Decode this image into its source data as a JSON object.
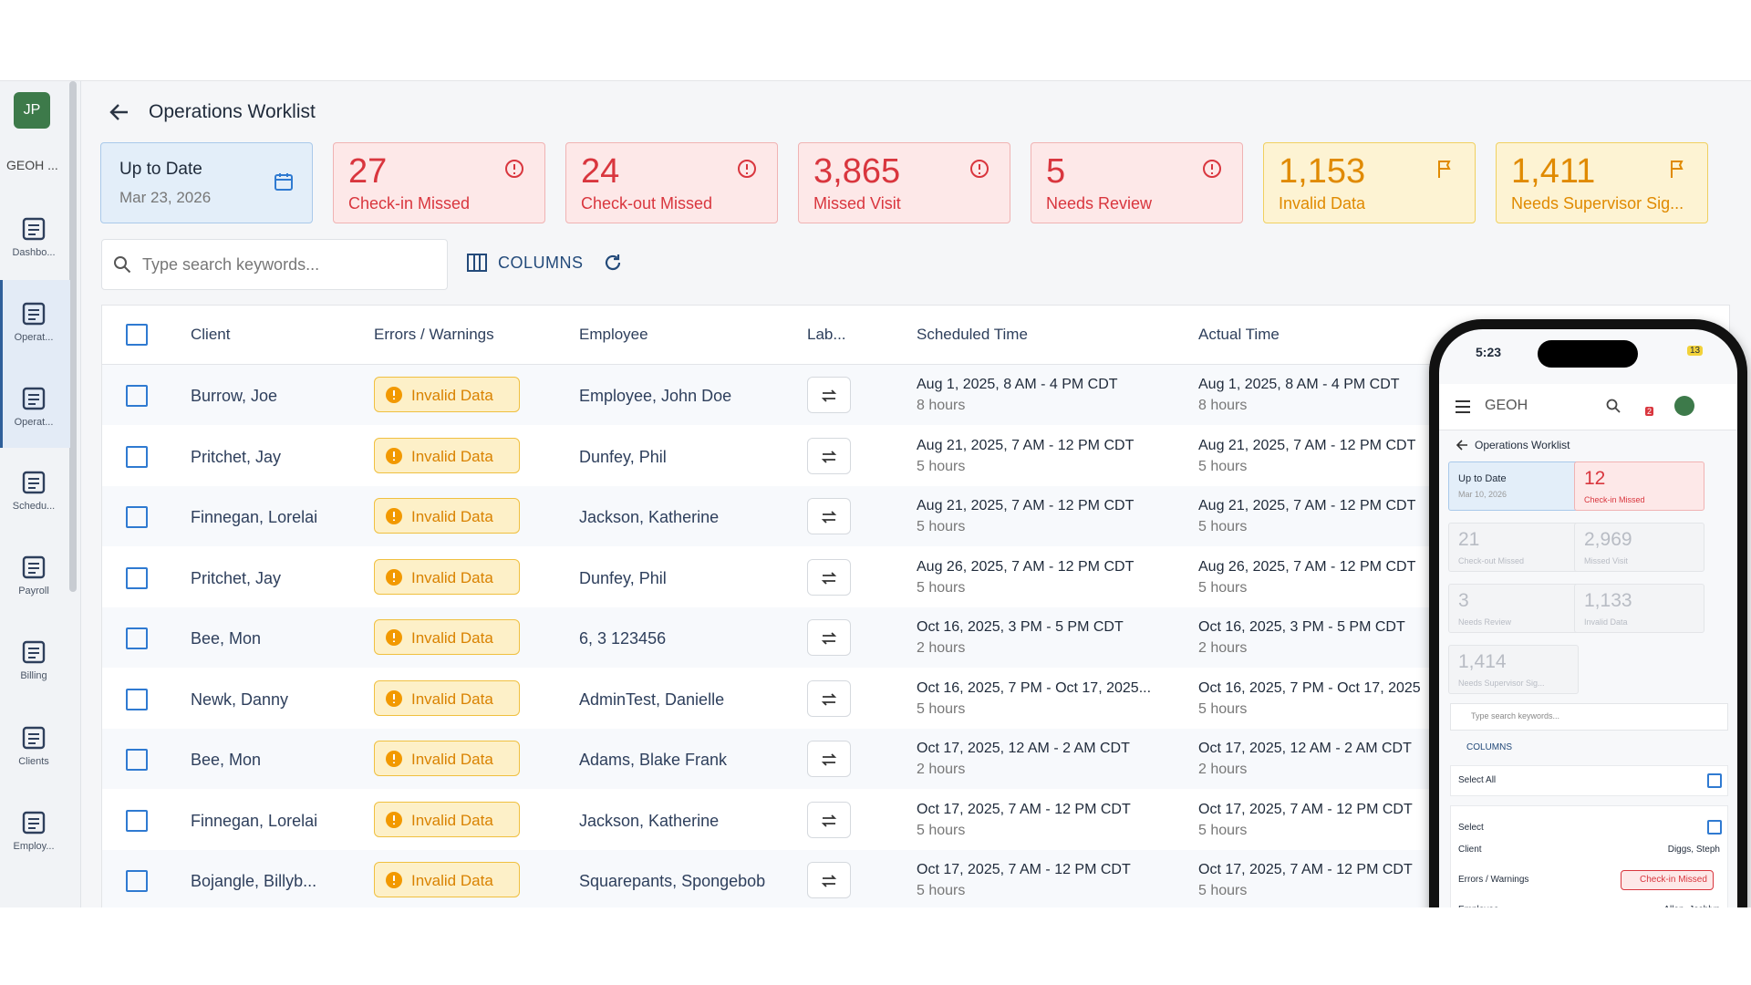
{
  "sidebar": {
    "avatar": "JP",
    "org": "GEOH ...",
    "nav": [
      "Dashbo...",
      "Operat...",
      "Operat...",
      "Schedu...",
      "Payroll",
      "Billing",
      "Clients",
      "Employ..."
    ]
  },
  "header": {
    "title": "Operations Worklist"
  },
  "cards": [
    {
      "kind": "date",
      "title": "Up to Date",
      "subtitle": "Mar 23, 2026"
    },
    {
      "kind": "error",
      "value": "27",
      "label": "Check-in Missed"
    },
    {
      "kind": "error",
      "value": "24",
      "label": "Check-out Missed"
    },
    {
      "kind": "error",
      "value": "3,865",
      "label": "Missed Visit"
    },
    {
      "kind": "error",
      "value": "5",
      "label": "Needs Review"
    },
    {
      "kind": "warning",
      "value": "1,153",
      "label": "Invalid Data"
    },
    {
      "kind": "warning",
      "value": "1,411",
      "label": "Needs Supervisor Sig..."
    }
  ],
  "toolbar": {
    "search_placeholder": "Type search keywords...",
    "columns_button": "COLUMNS"
  },
  "table": {
    "headers": [
      "Client",
      "Errors / Warnings",
      "Employee",
      "Lab...",
      "Scheduled Time",
      "Actual Time"
    ],
    "rows": [
      [
        "Burrow, Joe",
        "Invalid Data",
        "Employee, John Doe",
        "Aug 1, 2025, 8 AM - 4 PM CDT",
        "8 hours",
        "Aug 1, 2025, 8 AM - 4 PM CDT",
        "8 hours"
      ],
      [
        "Pritchet, Jay",
        "Invalid Data",
        "Dunfey, Phil",
        "Aug 21, 2025, 7 AM - 12 PM CDT",
        "5 hours",
        "Aug 21, 2025, 7 AM - 12 PM CDT",
        "5 hours"
      ],
      [
        "Finnegan, Lorelai",
        "Invalid Data",
        "Jackson, Katherine",
        "Aug 21, 2025, 7 AM - 12 PM CDT",
        "5 hours",
        "Aug 21, 2025, 7 AM - 12 PM CDT",
        "5 hours"
      ],
      [
        "Pritchet, Jay",
        "Invalid Data",
        "Dunfey, Phil",
        "Aug 26, 2025, 7 AM - 12 PM CDT",
        "5 hours",
        "Aug 26, 2025, 7 AM - 12 PM CDT",
        "5 hours"
      ],
      [
        "Bee, Mon",
        "Invalid Data",
        "6, 3 123456",
        "Oct 16, 2025, 3 PM - 5 PM CDT",
        "2 hours",
        "Oct 16, 2025, 3 PM - 5 PM CDT",
        "2 hours"
      ],
      [
        "Newk, Danny",
        "Invalid Data",
        "AdminTest, Danielle",
        "Oct 16, 2025, 7 PM - Oct 17, 2025...",
        "5 hours",
        "Oct 16, 2025, 7 PM - Oct 17, 2025",
        "5 hours"
      ],
      [
        "Bee, Mon",
        "Invalid Data",
        "Adams, Blake Frank",
        "Oct 17, 2025, 12 AM - 2 AM CDT",
        "2 hours",
        "Oct 17, 2025, 12 AM - 2 AM CDT",
        "2 hours"
      ],
      [
        "Finnegan, Lorelai",
        "Invalid Data",
        "Jackson, Katherine",
        "Oct 17, 2025, 7 AM - 12 PM CDT",
        "5 hours",
        "Oct 17, 2025, 7 AM - 12 PM CDT",
        "5 hours"
      ],
      [
        "Bojangle, Billyb...",
        "Invalid Data",
        "Squarepants, Spongebob",
        "Oct 17, 2025, 7 AM - 12 PM CDT",
        "5 hours",
        "Oct 17, 2025, 7 AM - 12 PM CDT",
        "5 hours"
      ]
    ]
  },
  "phone": {
    "time": "5:23",
    "battery": "13",
    "logo": "GEOH",
    "notifications": "2",
    "title": "Operations Worklist",
    "cards": [
      {
        "kind": "date",
        "title": "Up to Date",
        "subtitle": "Mar 10, 2026"
      },
      {
        "kind": "error",
        "value": "12",
        "label": "Check-in Missed"
      },
      {
        "kind": "muted",
        "value": "21",
        "label": "Check-out Missed"
      },
      {
        "kind": "muted",
        "value": "2,969",
        "label": "Missed Visit"
      },
      {
        "kind": "muted",
        "value": "3",
        "label": "Needs Review"
      },
      {
        "kind": "muted",
        "value": "1,133",
        "label": "Invalid Data"
      },
      {
        "kind": "muted",
        "value": "1,414",
        "label": "Needs Supervisor Sig..."
      }
    ],
    "search_placeholder": "Type search keywords...",
    "columns_button": "COLUMNS",
    "select_all": "Select All",
    "select": "Select",
    "fields": [
      {
        "label": "Client",
        "value": "Diggs, Steph"
      },
      {
        "label": "Errors / Warnings",
        "value": "Check-in Missed"
      },
      {
        "label": "Employee",
        "value": "Allen, Joshlyn"
      }
    ]
  }
}
